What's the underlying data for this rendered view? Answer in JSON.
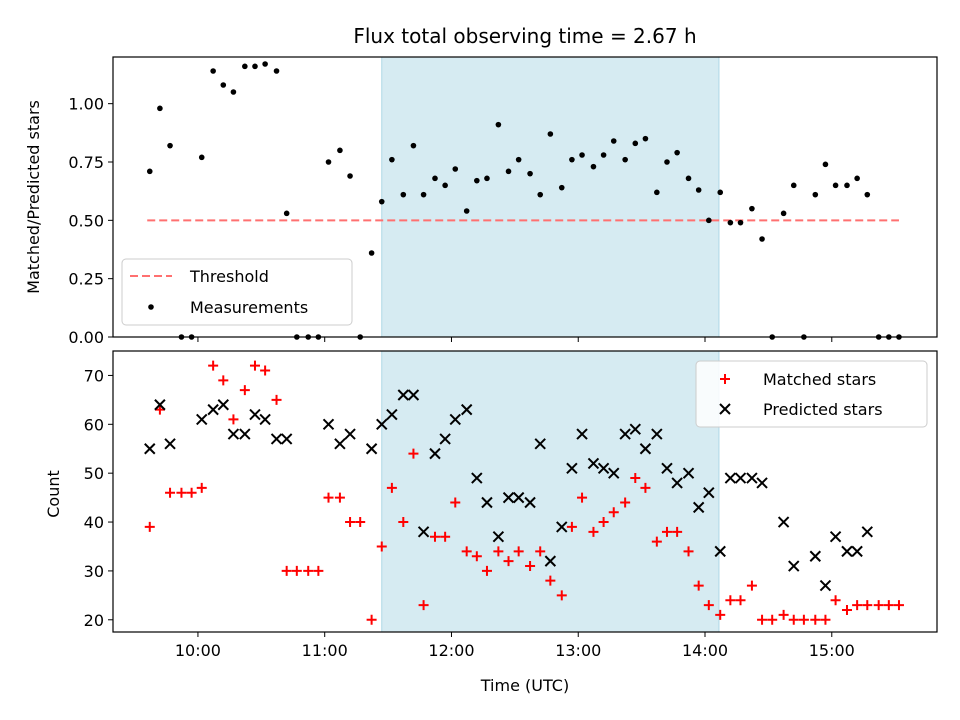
{
  "chart_data": [
    {
      "type": "scatter",
      "title": "Flux total observing time = 2.67 h",
      "xlabel": "",
      "ylabel": "Matched/Predicted stars",
      "xlim": [
        9.33,
        15.83
      ],
      "ylim": [
        0,
        1.2
      ],
      "yticks": [
        "0.00",
        "0.25",
        "0.50",
        "0.75",
        "1.00"
      ],
      "yticks_values": [
        0,
        0.25,
        0.5,
        0.75,
        1.0
      ],
      "shaded_span": {
        "x0": 11.45,
        "x1": 14.11,
        "color": "#add8e6"
      },
      "threshold": {
        "name": "Threshold",
        "value": 0.5,
        "x0": 9.6,
        "x1": 15.53,
        "color": "#ff7070",
        "style": "dashed"
      },
      "legend": {
        "placement": "lower-left"
      },
      "series": [
        {
          "name": "Measurements",
          "marker": "dot",
          "color": "#000000",
          "points": [
            [
              9.62,
              0.71
            ],
            [
              9.7,
              0.98
            ],
            [
              9.78,
              0.82
            ],
            [
              9.87,
              0.0
            ],
            [
              9.95,
              0.0
            ],
            [
              10.03,
              0.77
            ],
            [
              10.12,
              1.14
            ],
            [
              10.2,
              1.08
            ],
            [
              10.28,
              1.05
            ],
            [
              10.37,
              1.16
            ],
            [
              10.45,
              1.16
            ],
            [
              10.53,
              1.17
            ],
            [
              10.62,
              1.14
            ],
            [
              10.7,
              0.53
            ],
            [
              10.78,
              0.0
            ],
            [
              10.87,
              0.0
            ],
            [
              10.95,
              0.0
            ],
            [
              11.03,
              0.75
            ],
            [
              11.12,
              0.8
            ],
            [
              11.2,
              0.69
            ],
            [
              11.28,
              0.0
            ],
            [
              11.37,
              0.36
            ],
            [
              11.45,
              0.58
            ],
            [
              11.53,
              0.76
            ],
            [
              11.62,
              0.61
            ],
            [
              11.7,
              0.82
            ],
            [
              11.78,
              0.61
            ],
            [
              11.87,
              0.68
            ],
            [
              11.95,
              0.65
            ],
            [
              12.03,
              0.72
            ],
            [
              12.12,
              0.54
            ],
            [
              12.2,
              0.67
            ],
            [
              12.28,
              0.68
            ],
            [
              12.37,
              0.91
            ],
            [
              12.45,
              0.71
            ],
            [
              12.53,
              0.76
            ],
            [
              12.62,
              0.7
            ],
            [
              12.7,
              0.61
            ],
            [
              12.78,
              0.87
            ],
            [
              12.87,
              0.64
            ],
            [
              12.95,
              0.76
            ],
            [
              13.03,
              0.78
            ],
            [
              13.12,
              0.73
            ],
            [
              13.2,
              0.78
            ],
            [
              13.28,
              0.84
            ],
            [
              13.37,
              0.76
            ],
            [
              13.45,
              0.83
            ],
            [
              13.53,
              0.85
            ],
            [
              13.62,
              0.62
            ],
            [
              13.7,
              0.75
            ],
            [
              13.78,
              0.79
            ],
            [
              13.87,
              0.68
            ],
            [
              13.95,
              0.63
            ],
            [
              14.03,
              0.5
            ],
            [
              14.12,
              0.62
            ],
            [
              14.2,
              0.49
            ],
            [
              14.28,
              0.49
            ],
            [
              14.37,
              0.55
            ],
            [
              14.45,
              0.42
            ],
            [
              14.53,
              0.0
            ],
            [
              14.62,
              0.53
            ],
            [
              14.7,
              0.65
            ],
            [
              14.78,
              0.0
            ],
            [
              14.87,
              0.61
            ],
            [
              14.95,
              0.74
            ],
            [
              15.03,
              0.65
            ],
            [
              15.12,
              0.65
            ],
            [
              15.2,
              0.68
            ],
            [
              15.28,
              0.61
            ],
            [
              15.37,
              0.0
            ],
            [
              15.45,
              0.0
            ],
            [
              15.53,
              0.0
            ]
          ]
        }
      ]
    },
    {
      "type": "scatter",
      "title": "",
      "xlabel": "Time (UTC)",
      "ylabel": "Count",
      "xlim": [
        9.33,
        15.83
      ],
      "ylim": [
        17.5,
        75
      ],
      "xticks": [
        "10:00",
        "11:00",
        "12:00",
        "13:00",
        "14:00",
        "15:00"
      ],
      "xticks_values": [
        10,
        11,
        12,
        13,
        14,
        15
      ],
      "yticks": [
        "20",
        "30",
        "40",
        "50",
        "60",
        "70"
      ],
      "yticks_values": [
        20,
        30,
        40,
        50,
        60,
        70
      ],
      "shaded_span": {
        "x0": 11.45,
        "x1": 14.11,
        "color": "#add8e6"
      },
      "legend": {
        "placement": "upper-right"
      },
      "series": [
        {
          "name": "Matched stars",
          "marker": "plus",
          "color": "#ff0000",
          "points": [
            [
              9.62,
              39
            ],
            [
              9.7,
              63
            ],
            [
              9.78,
              46
            ],
            [
              9.87,
              46
            ],
            [
              9.95,
              46
            ],
            [
              10.03,
              47
            ],
            [
              10.12,
              72
            ],
            [
              10.2,
              69
            ],
            [
              10.28,
              61
            ],
            [
              10.37,
              67
            ],
            [
              10.45,
              72
            ],
            [
              10.53,
              71
            ],
            [
              10.62,
              65
            ],
            [
              10.7,
              30
            ],
            [
              10.78,
              30
            ],
            [
              10.87,
              30
            ],
            [
              10.95,
              30
            ],
            [
              11.03,
              45
            ],
            [
              11.12,
              45
            ],
            [
              11.2,
              40
            ],
            [
              11.28,
              40
            ],
            [
              11.37,
              20
            ],
            [
              11.45,
              35
            ],
            [
              11.53,
              47
            ],
            [
              11.62,
              40
            ],
            [
              11.7,
              54
            ],
            [
              11.78,
              23
            ],
            [
              11.87,
              37
            ],
            [
              11.95,
              37
            ],
            [
              12.03,
              44
            ],
            [
              12.12,
              34
            ],
            [
              12.2,
              33
            ],
            [
              12.28,
              30
            ],
            [
              12.37,
              34
            ],
            [
              12.45,
              32
            ],
            [
              12.53,
              34
            ],
            [
              12.62,
              31
            ],
            [
              12.7,
              34
            ],
            [
              12.78,
              28
            ],
            [
              12.87,
              25
            ],
            [
              12.95,
              39
            ],
            [
              13.03,
              45
            ],
            [
              13.12,
              38
            ],
            [
              13.2,
              40
            ],
            [
              13.28,
              42
            ],
            [
              13.37,
              44
            ],
            [
              13.45,
              49
            ],
            [
              13.53,
              47
            ],
            [
              13.62,
              36
            ],
            [
              13.7,
              38
            ],
            [
              13.78,
              38
            ],
            [
              13.87,
              34
            ],
            [
              13.95,
              27
            ],
            [
              14.03,
              23
            ],
            [
              14.12,
              21
            ],
            [
              14.2,
              24
            ],
            [
              14.28,
              24
            ],
            [
              14.37,
              27
            ],
            [
              14.45,
              20
            ],
            [
              14.53,
              20
            ],
            [
              14.62,
              21
            ],
            [
              14.7,
              20
            ],
            [
              14.78,
              20
            ],
            [
              14.87,
              20
            ],
            [
              14.95,
              20
            ],
            [
              15.03,
              24
            ],
            [
              15.12,
              22
            ],
            [
              15.2,
              23
            ],
            [
              15.28,
              23
            ],
            [
              15.37,
              23
            ],
            [
              15.45,
              23
            ],
            [
              15.53,
              23
            ]
          ]
        },
        {
          "name": "Predicted stars",
          "marker": "x",
          "color": "#000000",
          "points": [
            [
              9.62,
              55
            ],
            [
              9.7,
              64
            ],
            [
              9.78,
              56
            ],
            [
              10.03,
              61
            ],
            [
              10.12,
              63
            ],
            [
              10.2,
              64
            ],
            [
              10.28,
              58
            ],
            [
              10.37,
              58
            ],
            [
              10.45,
              62
            ],
            [
              10.53,
              61
            ],
            [
              10.62,
              57
            ],
            [
              10.7,
              57
            ],
            [
              11.03,
              60
            ],
            [
              11.12,
              56
            ],
            [
              11.2,
              58
            ],
            [
              11.37,
              55
            ],
            [
              11.45,
              60
            ],
            [
              11.53,
              62
            ],
            [
              11.62,
              66
            ],
            [
              11.7,
              66
            ],
            [
              11.78,
              38
            ],
            [
              11.87,
              54
            ],
            [
              11.95,
              57
            ],
            [
              12.03,
              61
            ],
            [
              12.12,
              63
            ],
            [
              12.2,
              49
            ],
            [
              12.28,
              44
            ],
            [
              12.37,
              37
            ],
            [
              12.45,
              45
            ],
            [
              12.53,
              45
            ],
            [
              12.62,
              44
            ],
            [
              12.7,
              56
            ],
            [
              12.78,
              32
            ],
            [
              12.87,
              39
            ],
            [
              12.95,
              51
            ],
            [
              13.03,
              58
            ],
            [
              13.12,
              52
            ],
            [
              13.2,
              51
            ],
            [
              13.28,
              50
            ],
            [
              13.37,
              58
            ],
            [
              13.45,
              59
            ],
            [
              13.53,
              55
            ],
            [
              13.62,
              58
            ],
            [
              13.7,
              51
            ],
            [
              13.78,
              48
            ],
            [
              13.87,
              50
            ],
            [
              13.95,
              43
            ],
            [
              14.03,
              46
            ],
            [
              14.12,
              34
            ],
            [
              14.2,
              49
            ],
            [
              14.28,
              49
            ],
            [
              14.37,
              49
            ],
            [
              14.45,
              48
            ],
            [
              14.62,
              40
            ],
            [
              14.7,
              31
            ],
            [
              14.87,
              33
            ],
            [
              14.95,
              27
            ],
            [
              15.03,
              37
            ],
            [
              15.12,
              34
            ],
            [
              15.2,
              34
            ],
            [
              15.28,
              38
            ]
          ]
        }
      ]
    }
  ]
}
